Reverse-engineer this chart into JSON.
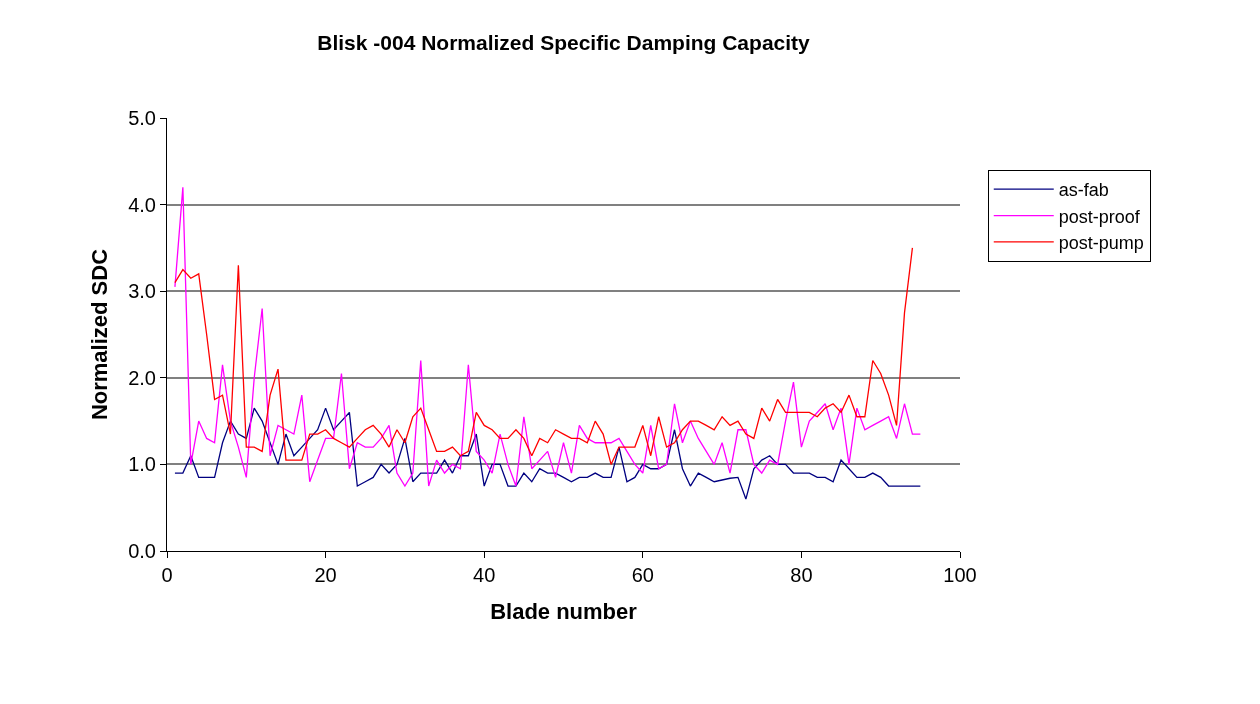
{
  "chart_data": {
    "type": "line",
    "title": "Blisk -004 Normalized Specific Damping Capacity",
    "xlabel": "Blade number",
    "ylabel": "Normalized SDC",
    "xlim": [
      0,
      100
    ],
    "xticks": [
      0,
      20,
      40,
      60,
      80,
      100
    ],
    "ylim": [
      0,
      5
    ],
    "yticks": [
      {
        "value": 0,
        "label": "0.0"
      },
      {
        "value": 1,
        "label": "1.0"
      },
      {
        "value": 2,
        "label": "2.0"
      },
      {
        "value": 3,
        "label": "3.0"
      },
      {
        "value": 4,
        "label": "4.0"
      },
      {
        "value": 5,
        "label": "5.0"
      }
    ],
    "grid": "y",
    "legend": "right",
    "marker": "none",
    "line_style": "solid",
    "series": [
      {
        "name": "as-fab",
        "color": "#000080",
        "x": [
          1,
          2,
          3,
          4,
          5,
          6,
          7,
          8,
          9,
          10,
          11,
          12,
          13,
          14,
          15,
          16,
          17,
          18,
          19,
          20,
          21,
          22,
          23,
          24,
          25,
          26,
          27,
          28,
          29,
          30,
          31,
          32,
          33,
          34,
          35,
          36,
          37,
          38,
          39,
          40,
          41,
          42,
          43,
          44,
          45,
          46,
          47,
          48,
          49,
          50,
          51,
          52,
          53,
          54,
          55,
          56,
          57,
          58,
          59,
          60,
          61,
          62,
          63,
          64,
          65,
          66,
          67,
          68,
          69,
          70,
          71,
          72,
          73,
          74,
          75,
          76,
          77,
          78,
          79,
          80,
          81,
          82,
          83,
          84,
          85,
          86,
          87,
          88,
          89,
          90,
          91,
          92,
          93,
          94,
          95
        ],
        "values": [
          0.9,
          0.9,
          1.1,
          0.85,
          0.85,
          0.85,
          1.25,
          1.5,
          1.35,
          1.3,
          1.65,
          1.5,
          1.25,
          1.0,
          1.35,
          1.1,
          1.2,
          1.3,
          1.4,
          1.65,
          1.4,
          1.5,
          1.6,
          0.75,
          0.8,
          0.85,
          1.0,
          0.9,
          1.0,
          1.3,
          0.8,
          0.9,
          0.9,
          0.9,
          1.05,
          0.9,
          1.1,
          1.1,
          1.35,
          0.75,
          1.0,
          1.0,
          0.75,
          0.75,
          0.9,
          0.8,
          0.95,
          0.9,
          0.9,
          0.85,
          0.8,
          0.85,
          0.85,
          0.9,
          0.85,
          0.85,
          1.2,
          0.8,
          0.85,
          1.0,
          0.95,
          0.95,
          1.0,
          1.4,
          0.95,
          0.75,
          0.9,
          0.85,
          0.8,
          0.82,
          0.84,
          0.85,
          0.6,
          0.95,
          1.05,
          1.1,
          1.0,
          1.0,
          0.9,
          0.9,
          0.9,
          0.85,
          0.85,
          0.8,
          1.05,
          0.95,
          0.85,
          0.85,
          0.9,
          0.85,
          0.75,
          0.75,
          0.75,
          0.75,
          0.75
        ]
      },
      {
        "name": "post-proof",
        "color": "#ff00ff",
        "x": [
          1,
          2,
          3,
          4,
          5,
          6,
          7,
          8,
          9,
          10,
          11,
          12,
          13,
          14,
          15,
          16,
          17,
          18,
          19,
          20,
          21,
          22,
          23,
          24,
          25,
          26,
          27,
          28,
          29,
          30,
          31,
          32,
          33,
          34,
          35,
          36,
          37,
          38,
          39,
          40,
          41,
          42,
          43,
          44,
          45,
          46,
          47,
          48,
          49,
          50,
          51,
          52,
          53,
          54,
          55,
          56,
          57,
          58,
          59,
          60,
          61,
          62,
          63,
          64,
          65,
          66,
          67,
          68,
          69,
          70,
          71,
          72,
          73,
          74,
          75,
          76,
          77,
          78,
          79,
          80,
          81,
          82,
          83,
          84,
          85,
          86,
          87,
          88,
          89,
          90,
          91,
          92,
          93,
          94,
          95
        ],
        "values": [
          3.05,
          4.2,
          1.0,
          1.5,
          1.3,
          1.25,
          2.15,
          1.5,
          1.2,
          0.85,
          2.0,
          2.8,
          1.1,
          1.45,
          1.4,
          1.35,
          1.8,
          0.8,
          1.05,
          1.3,
          1.3,
          2.05,
          0.95,
          1.25,
          1.2,
          1.2,
          1.3,
          1.45,
          0.9,
          0.75,
          0.9,
          2.2,
          0.75,
          1.05,
          0.9,
          1.0,
          0.95,
          2.15,
          1.15,
          1.05,
          0.9,
          1.35,
          1.0,
          0.75,
          1.55,
          0.95,
          1.05,
          1.15,
          0.85,
          1.25,
          0.9,
          1.45,
          1.3,
          1.25,
          1.25,
          1.25,
          1.3,
          1.15,
          1.0,
          0.9,
          1.45,
          0.95,
          1.0,
          1.7,
          1.25,
          1.5,
          1.3,
          1.15,
          1.0,
          1.25,
          0.9,
          1.4,
          1.4,
          1.0,
          0.9,
          1.05,
          1.0,
          1.5,
          1.95,
          1.2,
          1.5,
          1.6,
          1.7,
          1.4,
          1.65,
          1.0,
          1.65,
          1.4,
          1.45,
          1.5,
          1.55,
          1.3,
          1.7,
          1.35,
          1.35
        ]
      },
      {
        "name": "post-pump",
        "color": "#ff0000",
        "x": [
          1,
          2,
          3,
          4,
          5,
          6,
          7,
          8,
          9,
          10,
          11,
          12,
          13,
          14,
          15,
          16,
          17,
          18,
          19,
          20,
          21,
          22,
          23,
          24,
          25,
          26,
          27,
          28,
          29,
          30,
          31,
          32,
          33,
          34,
          35,
          36,
          37,
          38,
          39,
          40,
          41,
          42,
          43,
          44,
          45,
          46,
          47,
          48,
          49,
          50,
          51,
          52,
          53,
          54,
          55,
          56,
          57,
          58,
          59,
          60,
          61,
          62,
          63,
          64,
          65,
          66,
          67,
          68,
          69,
          70,
          71,
          72,
          73,
          74,
          75,
          76,
          77,
          78,
          79,
          80,
          81,
          82,
          83,
          84,
          85,
          86,
          87,
          88,
          89,
          90,
          91,
          92,
          93,
          94
        ],
        "values": [
          3.1,
          3.25,
          3.15,
          3.2,
          2.5,
          1.75,
          1.8,
          1.35,
          3.3,
          1.2,
          1.2,
          1.15,
          1.8,
          2.1,
          1.05,
          1.05,
          1.05,
          1.35,
          1.35,
          1.4,
          1.3,
          1.25,
          1.2,
          1.3,
          1.4,
          1.45,
          1.35,
          1.2,
          1.4,
          1.25,
          1.55,
          1.65,
          1.4,
          1.15,
          1.15,
          1.2,
          1.1,
          1.15,
          1.6,
          1.45,
          1.4,
          1.3,
          1.3,
          1.4,
          1.3,
          1.1,
          1.3,
          1.25,
          1.4,
          1.35,
          1.3,
          1.3,
          1.25,
          1.5,
          1.35,
          1.0,
          1.2,
          1.2,
          1.2,
          1.45,
          1.1,
          1.55,
          1.2,
          1.25,
          1.4,
          1.5,
          1.5,
          1.45,
          1.4,
          1.55,
          1.45,
          1.5,
          1.35,
          1.3,
          1.65,
          1.5,
          1.75,
          1.6,
          1.6,
          1.6,
          1.6,
          1.55,
          1.65,
          1.7,
          1.6,
          1.8,
          1.55,
          1.55,
          2.2,
          2.05,
          1.8,
          1.45,
          2.75,
          3.5
        ]
      }
    ]
  }
}
